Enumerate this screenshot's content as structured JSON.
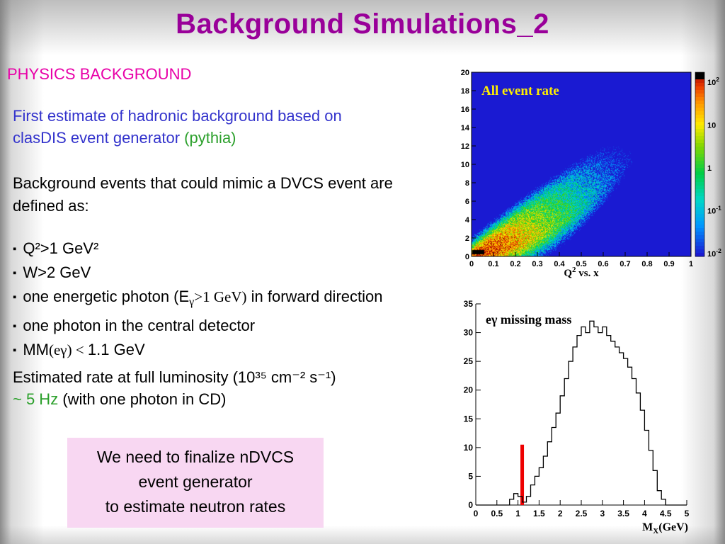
{
  "slide": {
    "title": "Background Simulations_2",
    "heading": "PHYSICS BACKGROUND",
    "bullet_char": "▪",
    "intro": {
      "line1": "First estimate of hadronic background based on",
      "line2_blue": "clasDIS event generator ",
      "line2_green": "(pythia)"
    },
    "mimic_line1": "Background events that could mimic a DVCS event are",
    "mimic_line2": "defined as:",
    "bullets": {
      "b1": "Q²>1 GeV²",
      "b2": "W>2 GeV",
      "b3_pre": "one energetic photon (E",
      "b3_sub": "γ",
      "b3_mid": ">1 GeV)",
      "b3_post": " in forward direction",
      "b4": "one photon in the central detector",
      "b5_pre": "MM",
      "b5_serif": "(eγ) < ",
      "b5_post": "1.1 GeV"
    },
    "rate_line1": "Estimated rate at full luminosity (10³⁵ cm⁻² s⁻¹)",
    "rate_line2_green": "~ 5 Hz",
    "rate_line2_rest": " (with one photon in CD)",
    "note_box": [
      "We need to finalize nDVCS",
      "event generator",
      "to estimate neutron rates"
    ]
  },
  "colors": {
    "title": "#990099",
    "heading": "#e800a8",
    "blue_text": "#3333cc",
    "green_text": "#2ca02c",
    "black_text": "#000000",
    "note_box_bg": "#f8d7f2",
    "heatmap_bg": "#1a1ad2",
    "annotation_yellow": "#ffee00",
    "hist_line": "#000000",
    "cut_line": "#ee0000"
  },
  "chart_data": [
    {
      "type": "heatmap",
      "annotation": "All event rate",
      "caption": {
        "pre": "Q",
        "sup": "2",
        "post": " vs. x"
      },
      "x_range": [
        0,
        1
      ],
      "y_range": [
        0,
        20
      ],
      "x_ticks": [
        "0",
        "0.1",
        "0.2",
        "0.3",
        "0.4",
        "0.5",
        "0.6",
        "0.7",
        "0.8",
        "0.9",
        "1"
      ],
      "y_ticks": [
        "0",
        "2",
        "4",
        "6",
        "8",
        "10",
        "12",
        "14",
        "16",
        "18",
        "20"
      ],
      "z_scale": "log",
      "colorbar": {
        "labels": [
          {
            "base": "10",
            "exp": "2"
          },
          {
            "base": "10",
            "exp": ""
          },
          {
            "base": "1",
            "exp": ""
          },
          {
            "base": "10",
            "exp": "-1"
          },
          {
            "base": "10",
            "exp": "-2"
          }
        ],
        "range": [
          0.01,
          100
        ]
      },
      "distribution": {
        "description": "Event rate vs x (0-1) and Q2 (0-20 GeV2): kinematic fan from origin widening to high x; hottest region (rate ~100, red/orange) at x<0.15, Q2<2; green ~1 in mid band; sparse blue/cyan speckle ~0.01-0.1 near band edges up to x~0.85, Q2~12; dark/black overflow patch at x<0.06, Q2<0.6",
        "upper_envelope_Q2_of_x": "19.5*x",
        "lower_envelope_Q2_of_x": "18*x^1.9",
        "hotspot": {
          "x": 0.06,
          "Q2": 0.7,
          "rate": 100
        }
      }
    },
    {
      "type": "histogram",
      "annotation": "eγ missing mass",
      "x_label": {
        "pre": "M",
        "sub": "X",
        "post": "(GeV)"
      },
      "x_range": [
        0,
        5
      ],
      "y_range": [
        0,
        35
      ],
      "x_ticks": [
        "0",
        "0.5",
        "1",
        "1.5",
        "2",
        "2.5",
        "3",
        "3.5",
        "4",
        "4.5",
        "5"
      ],
      "y_ticks": [
        "0",
        "5",
        "10",
        "15",
        "20",
        "25",
        "30",
        "35"
      ],
      "bin_start": 0,
      "bin_width": 0.1,
      "counts": [
        0,
        0,
        0,
        0,
        0,
        0,
        0,
        0,
        1,
        2,
        1.5,
        0.5,
        1.5,
        3.5,
        5,
        6.5,
        8.5,
        11,
        13.5,
        16,
        19,
        22,
        25,
        27.5,
        29.5,
        31,
        30,
        32,
        31,
        30,
        31,
        29.5,
        28.5,
        27.5,
        26.5,
        25.5,
        24,
        22,
        19.5,
        16.5,
        13,
        9.5,
        6,
        2.5,
        1,
        0,
        0,
        0,
        0,
        0
      ],
      "cut_line": {
        "x": 1.1,
        "height": 10.5
      }
    }
  ]
}
